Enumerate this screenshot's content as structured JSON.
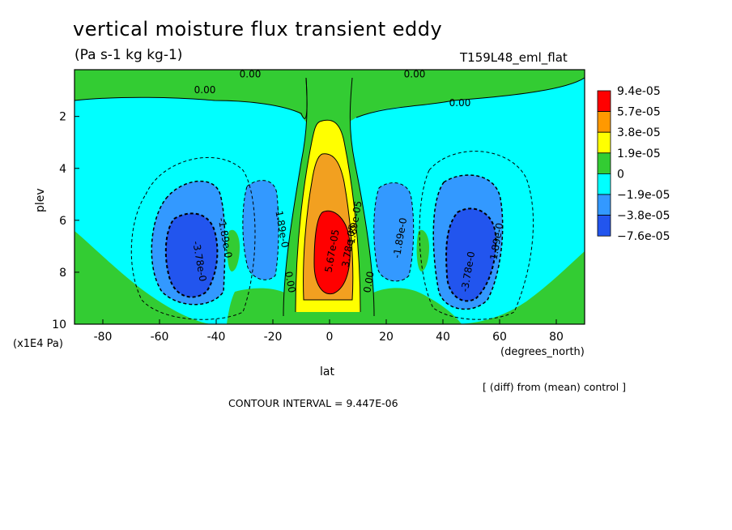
{
  "title": "vertical moisture flux transient eddy",
  "units": "(Pa s-1 kg kg-1)",
  "run_label": "T159L48_eml_flat",
  "y_unit_label": "(x1E4 Pa)",
  "x_unit_label": "(degrees_north)",
  "note": "[ (diff) from (mean) control ]",
  "contour_interval": "CONTOUR INTERVAL = 9.447E-06",
  "colors": {
    "red": "#ff0000",
    "orange": "#ff9900",
    "gold": "#f2a020",
    "yellow": "#ffff00",
    "green": "#33cc33",
    "cyan": "#00ffff",
    "blue": "#3399ff",
    "darkblue": "#2255ee"
  },
  "chart_data": {
    "type": "heatmap",
    "xlabel": "lat",
    "ylabel": "plev",
    "x_ticks": [
      "-80",
      "-60",
      "-40",
      "-20",
      "0",
      "20",
      "40",
      "60",
      "80"
    ],
    "y_ticks": [
      "2",
      "4",
      "6",
      "8",
      "10"
    ],
    "x_tick_values": [
      -80,
      -60,
      -40,
      -20,
      0,
      20,
      40,
      60,
      80
    ],
    "y_tick_values": [
      2,
      4,
      6,
      8,
      10
    ],
    "xlim": [
      -90,
      90
    ],
    "ylim": [
      0.2,
      10
    ],
    "y_inverted": true,
    "colorbar": {
      "labels": [
        "9.4e-05",
        "5.7e-05",
        "3.8e-05",
        "1.9e-05",
        "0",
        "−1.9e-05",
        "−3.8e-05",
        "−7.6e-05"
      ],
      "colors": [
        "#ff0000",
        "#ff9900",
        "#ffff00",
        "#33cc33",
        "#00ffff",
        "#3399ff",
        "#2255ee"
      ]
    },
    "contour_labels": [
      {
        "text": "0.00",
        "lat": -28,
        "plev": 0.5
      },
      {
        "text": "0.00",
        "lat": 30,
        "plev": 0.5
      },
      {
        "text": "0.00",
        "lat": -44,
        "plev": 1.1
      },
      {
        "text": "0.00",
        "lat": 46,
        "plev": 1.6
      },
      {
        "text": "-1.89e-0",
        "lat": -38,
        "plev": 6.7
      },
      {
        "text": "-1.89e-0",
        "lat": -18,
        "plev": 6.3
      },
      {
        "text": "-3.78e-0",
        "lat": -47,
        "plev": 7.6
      },
      {
        "text": "-1.89e-0",
        "lat": 26,
        "plev": 6.7
      },
      {
        "text": "-1.89e-0",
        "lat": 60,
        "plev": 6.9
      },
      {
        "text": "-3.78e-0",
        "lat": 50,
        "plev": 8.0
      },
      {
        "text": "0.00",
        "lat": -15,
        "plev": 8.4
      },
      {
        "text": "0.00",
        "lat": 15,
        "plev": 8.4
      },
      {
        "text": "5.67e-05",
        "lat": 2,
        "plev": 7.2
      },
      {
        "text": "3.78e-05",
        "lat": 8,
        "plev": 7.0
      },
      {
        "text": "1.89e-05",
        "lat": 10,
        "plev": 6.1
      }
    ]
  }
}
